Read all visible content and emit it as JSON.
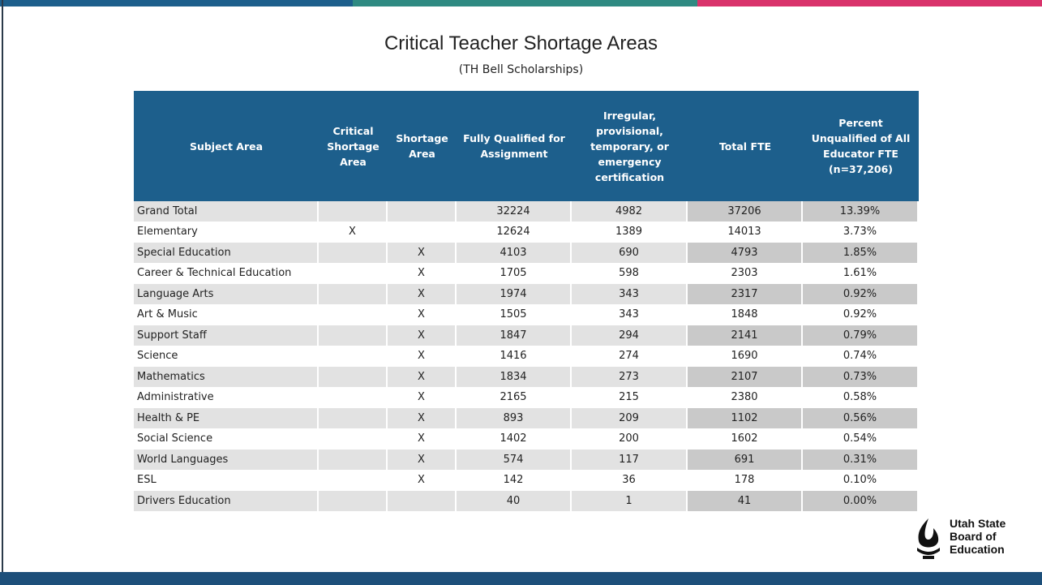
{
  "header": {
    "title": "Critical Teacher Shortage Areas",
    "subtitle": "(TH Bell Scholarships)"
  },
  "table": {
    "columns": [
      "Subject Area",
      "Critical Shortage Area",
      "Shortage Area",
      "Fully Qualified for Assignment",
      "Irregular, provisional, temporary, or emergency certification",
      "Total FTE",
      "Percent Unqualified of All Educator FTE (n=37,206)"
    ],
    "rows": [
      [
        "Grand Total",
        null,
        null,
        "32224",
        "4982",
        "37206",
        "13.39%"
      ],
      [
        "Elementary",
        "X",
        null,
        "12624",
        "1389",
        "14013",
        "3.73%"
      ],
      [
        "Special Education",
        null,
        "X",
        "4103",
        "690",
        "4793",
        "1.85%"
      ],
      [
        "Career & Technical Education",
        null,
        "X",
        "1705",
        "598",
        "2303",
        "1.61%"
      ],
      [
        "Language Arts",
        null,
        "X",
        "1974",
        "343",
        "2317",
        "0.92%"
      ],
      [
        "Art & Music",
        null,
        "X",
        "1505",
        "343",
        "1848",
        "0.92%"
      ],
      [
        "Support Staff",
        null,
        "X",
        "1847",
        "294",
        "2141",
        "0.79%"
      ],
      [
        "Science",
        null,
        "X",
        "1416",
        "274",
        "1690",
        "0.74%"
      ],
      [
        "Mathematics",
        null,
        "X",
        "1834",
        "273",
        "2107",
        "0.73%"
      ],
      [
        "Administrative",
        null,
        "X",
        "2165",
        "215",
        "2380",
        "0.58%"
      ],
      [
        "Health & PE",
        null,
        "X",
        "893",
        "209",
        "1102",
        "0.56%"
      ],
      [
        "Social Science",
        null,
        "X",
        "1402",
        "200",
        "1602",
        "0.54%"
      ],
      [
        "World Languages",
        null,
        "X",
        "574",
        "117",
        "691",
        "0.31%"
      ],
      [
        "ESL",
        null,
        "X",
        "142",
        "36",
        "178",
        "0.10%"
      ],
      [
        "Drivers Education",
        null,
        null,
        "40",
        "1",
        "41",
        "0.00%"
      ]
    ]
  },
  "logo": {
    "lines": [
      "Utah State",
      "Board of",
      "Education"
    ]
  }
}
